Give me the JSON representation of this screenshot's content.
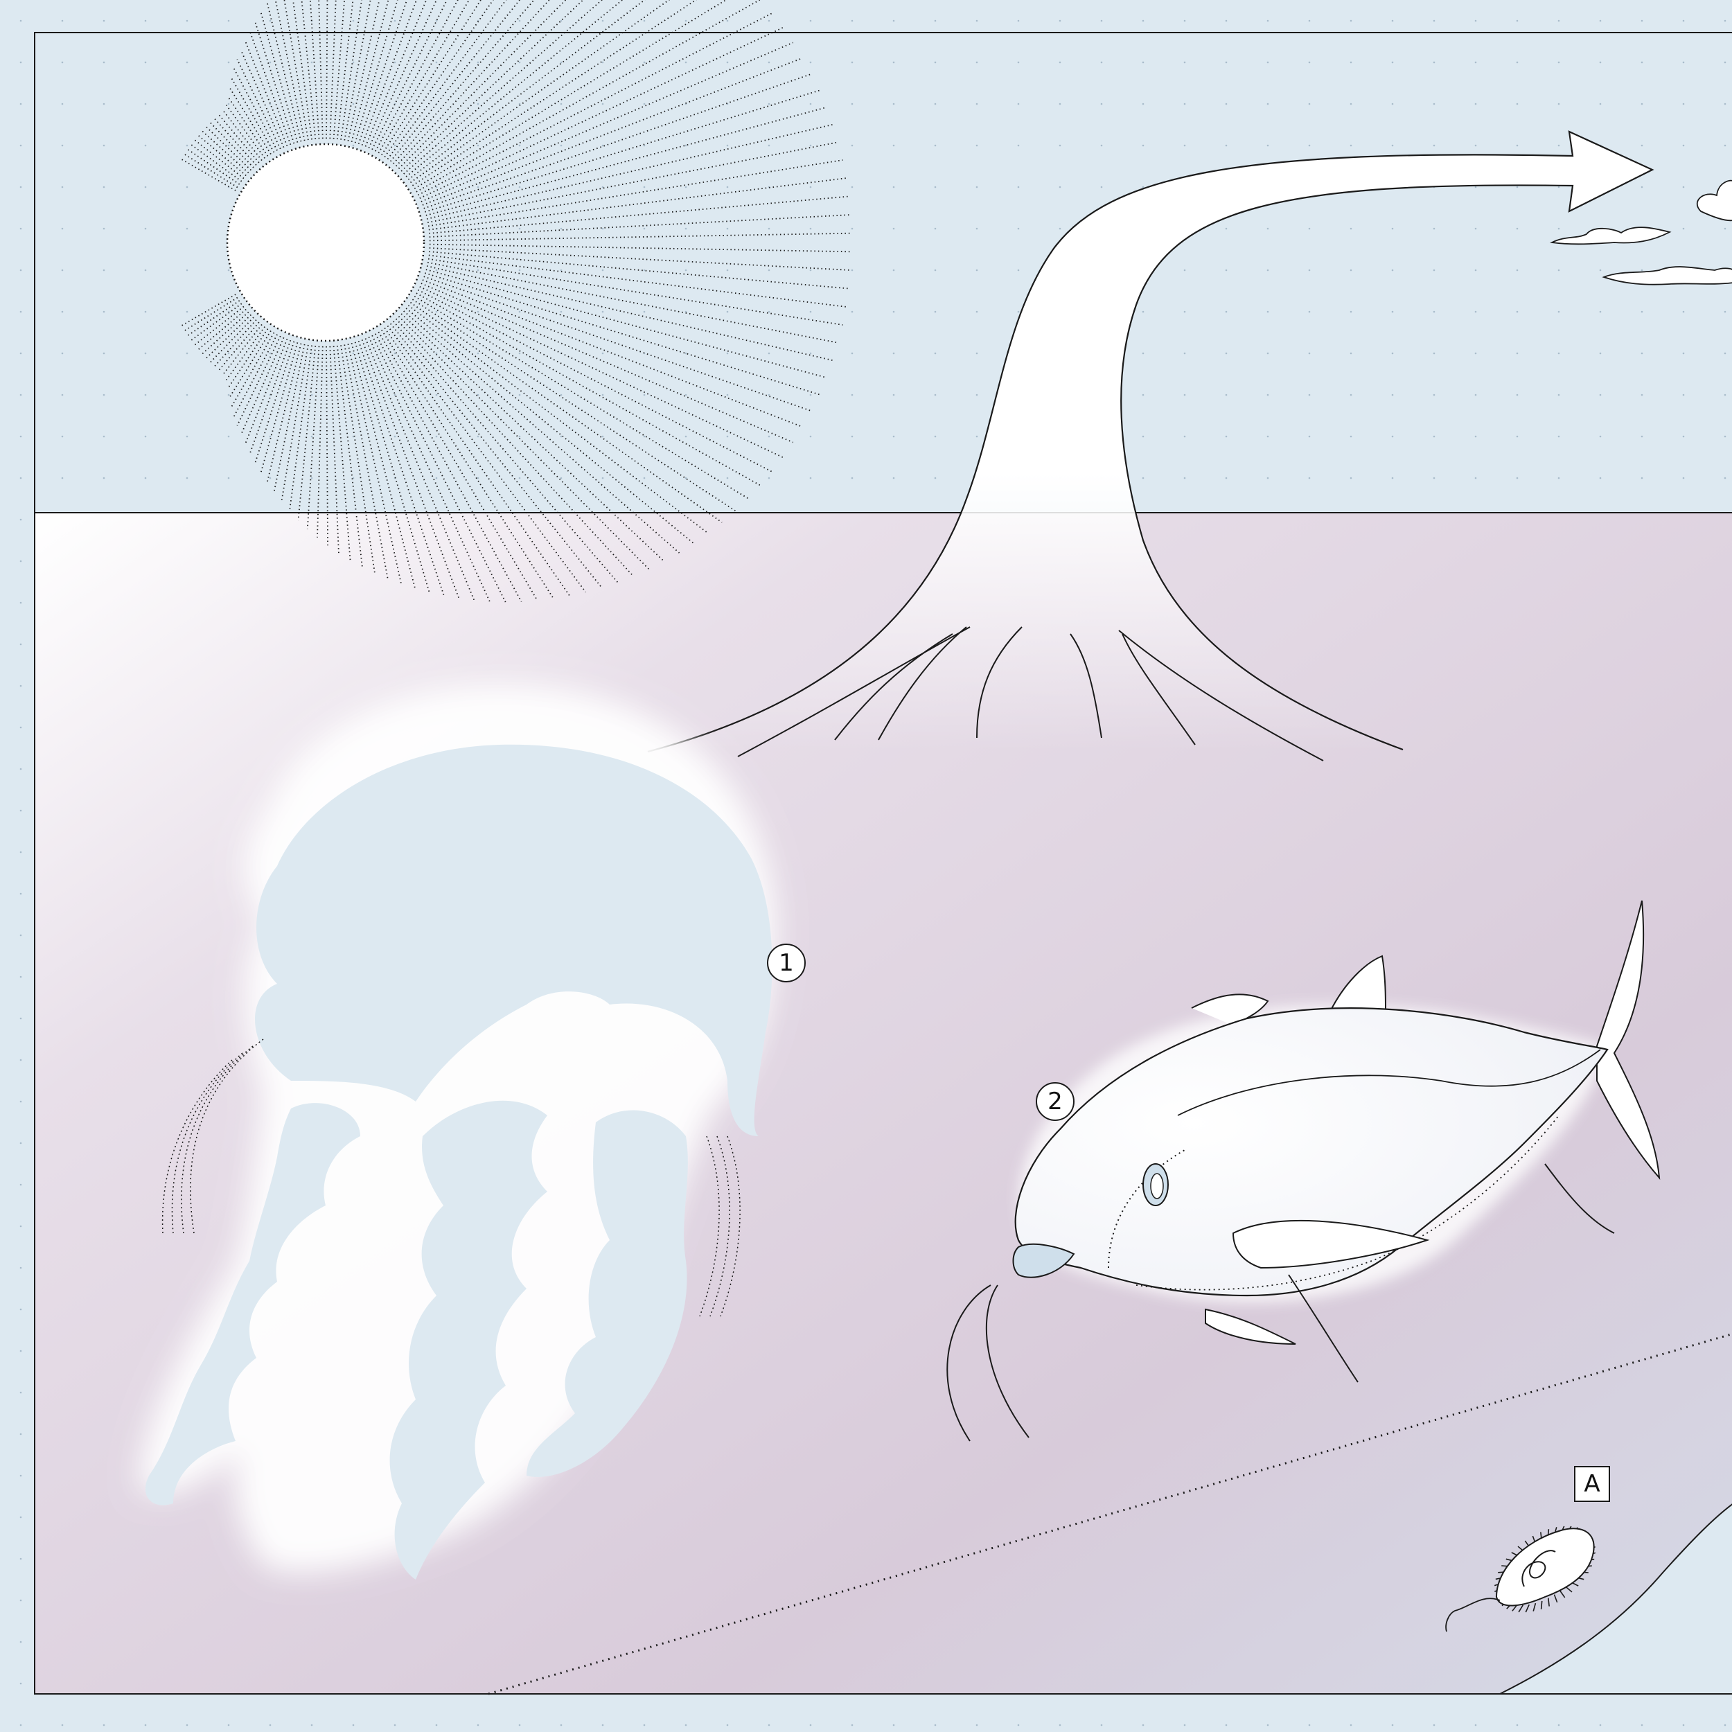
{
  "diagram": {
    "background_color": "#dde9f1",
    "sky_color": "#dde9f1",
    "water_top_color": "#ffffff",
    "water_color": "#dcd0dc",
    "line_color": "#1a1a1a",
    "organism_fill": "#dde9f1",
    "elements": [
      {
        "id": "sun",
        "icon": "sun-icon"
      },
      {
        "id": "evaporation-arrow",
        "icon": "curved-arrow-icon"
      },
      {
        "id": "clouds",
        "icon": "cloud-icon"
      },
      {
        "id": "jellyfish",
        "icon": "jellyfish-icon"
      },
      {
        "id": "fish",
        "icon": "fish-icon"
      },
      {
        "id": "bacterium",
        "icon": "bacterium-icon"
      },
      {
        "id": "seafloor-slope",
        "icon": "seafloor-icon"
      }
    ],
    "callouts": {
      "jellyfish": "1",
      "fish": "2",
      "bacterium": "A"
    }
  }
}
